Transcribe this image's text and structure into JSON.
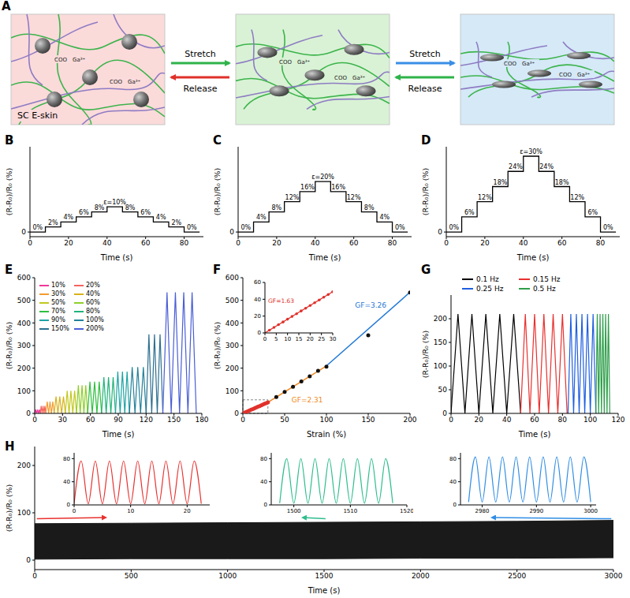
{
  "diagram": {
    "panel": "A",
    "states": [
      {
        "label": "SC E-skin",
        "color": "#fbdada"
      },
      {
        "color": "#d9f2d5"
      },
      {
        "color": "#d5e9f7"
      }
    ],
    "transitions": [
      {
        "forward": "Stretch",
        "back": "Release",
        "forward_color": "#2fb34a",
        "back_color": "#e0302a"
      },
      {
        "forward": "Stretch",
        "back": "Release",
        "forward_color": "#3a8ee6",
        "back_color": "#2fb34a"
      }
    ],
    "ion": "Ga³⁺",
    "ligand": "COO"
  },
  "chart_data": [
    {
      "panel": "B",
      "type": "line",
      "line_style": "step",
      "x_label": "Time (s)",
      "y_label": "(R-R₀)/R₀ (%)",
      "xlim": [
        0,
        90
      ],
      "xticks": [
        0,
        20,
        40,
        60,
        80
      ],
      "ylim": [
        -3,
        55
      ],
      "yticks": [
        0
      ],
      "series": [
        {
          "color": "#000000",
          "x": [
            0,
            8,
            16,
            24,
            32,
            40,
            48,
            56,
            64,
            72,
            80,
            88
          ],
          "values": [
            0,
            3.3,
            6.5,
            9.8,
            13,
            16.3,
            13,
            9.8,
            6.5,
            3.3,
            0,
            0
          ],
          "step_labels": [
            "0%",
            "2%",
            "4%",
            "6%",
            "8%",
            "ε=10%",
            "8%",
            "6%",
            "4%",
            "2%",
            "0%",
            null
          ]
        }
      ]
    },
    {
      "panel": "C",
      "type": "line",
      "line_style": "step",
      "x_label": "Time (s)",
      "y_label": "(R-R₀)/R₀ (%)",
      "xlim": [
        0,
        90
      ],
      "xticks": [
        0,
        20,
        40,
        60,
        80
      ],
      "ylim": [
        -3,
        55
      ],
      "yticks": [
        0
      ],
      "series": [
        {
          "color": "#000000",
          "x": [
            0,
            8,
            16,
            24,
            32,
            40,
            48,
            56,
            64,
            72,
            80,
            88
          ],
          "values": [
            0,
            6.5,
            13,
            19.6,
            26.1,
            32.6,
            26.1,
            19.6,
            13,
            6.5,
            0,
            0
          ],
          "step_labels": [
            "0%",
            "4%",
            "8%",
            "12%",
            "16%",
            "ε=20%",
            "16%",
            "12%",
            "8%",
            "4%",
            "0%",
            null
          ]
        }
      ]
    },
    {
      "panel": "D",
      "type": "line",
      "line_style": "step",
      "x_label": "Time (s)",
      "y_label": "(R-R₀)/R₀ (%)",
      "xlim": [
        0,
        90
      ],
      "xticks": [
        0,
        20,
        40,
        60,
        80
      ],
      "ylim": [
        -3,
        55
      ],
      "yticks": [
        0
      ],
      "series": [
        {
          "color": "#000000",
          "x": [
            0,
            8,
            16,
            24,
            32,
            40,
            48,
            56,
            64,
            72,
            80,
            88
          ],
          "values": [
            0,
            9.8,
            19.6,
            29.3,
            39.1,
            48.9,
            39.1,
            29.3,
            19.6,
            9.8,
            0,
            0
          ],
          "step_labels": [
            "0%",
            "6%",
            "12%",
            "18%",
            "24%",
            "ε=30%",
            "24%",
            "18%",
            "12%",
            "6%",
            "0%",
            null
          ]
        }
      ]
    },
    {
      "panel": "E",
      "type": "line",
      "x_label": "Time (s)",
      "y_label": "(R-R₀)/R₀ (%)",
      "xlim": [
        0,
        180
      ],
      "xticks": [
        0,
        30,
        60,
        90,
        120,
        150,
        180
      ],
      "ylim": [
        0,
        600
      ],
      "yticks": [
        0,
        100,
        200,
        300,
        400,
        500,
        600
      ],
      "legend": "top-left",
      "series": [
        {
          "name": "10%",
          "color": "#f0379b",
          "x": [
            0,
            1,
            2,
            3,
            4,
            5,
            6
          ],
          "values": [
            0,
            17,
            0,
            17,
            0,
            17,
            0
          ]
        },
        {
          "name": "20%",
          "color": "#f4645e",
          "x": [
            6,
            7,
            8,
            9,
            10,
            11,
            12
          ],
          "values": [
            0,
            33,
            0,
            33,
            0,
            33,
            0
          ]
        },
        {
          "name": "30%",
          "color": "#f39c2f",
          "x": [
            12,
            13.5,
            15,
            16.5,
            18,
            19.5,
            21
          ],
          "values": [
            0,
            52,
            0,
            52,
            0,
            52,
            0
          ]
        },
        {
          "name": "40%",
          "color": "#d9b21c",
          "x": [
            21,
            23,
            25,
            27,
            29,
            31,
            33
          ],
          "values": [
            0,
            75,
            0,
            75,
            0,
            75,
            0
          ]
        },
        {
          "name": "50%",
          "color": "#c2c81f",
          "x": [
            33,
            35,
            37,
            39,
            41,
            43,
            45
          ],
          "values": [
            0,
            100,
            0,
            100,
            0,
            100,
            0
          ]
        },
        {
          "name": "60%",
          "color": "#8fcf2a",
          "x": [
            45,
            47,
            49,
            51,
            53,
            55,
            57
          ],
          "values": [
            0,
            125,
            0,
            125,
            0,
            125,
            0
          ]
        },
        {
          "name": "70%",
          "color": "#2fbf3f",
          "x": [
            57,
            59.5,
            62,
            64.5,
            67,
            69.5,
            72
          ],
          "values": [
            0,
            140,
            0,
            140,
            0,
            140,
            0
          ]
        },
        {
          "name": "80%",
          "color": "#22b37a",
          "x": [
            72,
            74.5,
            77,
            79.5,
            82,
            84.5,
            87
          ],
          "values": [
            0,
            160,
            0,
            160,
            0,
            160,
            0
          ]
        },
        {
          "name": "90%",
          "color": "#1ea3a3",
          "x": [
            87,
            89.5,
            92,
            94.5,
            97,
            99.5,
            102
          ],
          "values": [
            0,
            185,
            0,
            185,
            0,
            185,
            0
          ]
        },
        {
          "name": "100%",
          "color": "#23809a",
          "x": [
            102,
            105,
            108,
            111,
            114,
            117,
            120
          ],
          "values": [
            0,
            205,
            0,
            205,
            0,
            205,
            0
          ]
        },
        {
          "name": "150%",
          "color": "#2c6f8f",
          "x": [
            120,
            123,
            126,
            129,
            132,
            135,
            138
          ],
          "values": [
            0,
            350,
            0,
            350,
            0,
            350,
            0
          ]
        },
        {
          "name": "200%",
          "color": "#4a5fd6",
          "x": [
            138,
            142.5,
            147,
            151.5,
            156,
            160.5,
            165,
            169.5,
            174
          ],
          "values": [
            0,
            535,
            0,
            535,
            0,
            535,
            0,
            535,
            0
          ]
        }
      ]
    },
    {
      "panel": "F",
      "type": "scatter",
      "x_label": "Strain (%)",
      "y_label": "(R-R₀)/R₀ (%)",
      "xlim": [
        0,
        200
      ],
      "xticks": [
        0,
        50,
        100,
        150,
        200
      ],
      "ylim": [
        0,
        600
      ],
      "yticks": [
        0,
        100,
        200,
        300,
        400,
        500,
        600
      ],
      "inset": {
        "xlim": [
          0,
          30
        ],
        "xticks": [
          0,
          5,
          10,
          15,
          20,
          25,
          30
        ],
        "ylim": [
          0,
          60
        ],
        "yticks": [
          0,
          20,
          40,
          60
        ]
      },
      "series": [
        {
          "type": "line",
          "color": "#e0312b",
          "x": [
            0,
            30
          ],
          "values": [
            0,
            48.9
          ],
          "label": "GF=1.63"
        },
        {
          "type": "line",
          "color": "#f08a24",
          "x": [
            30,
            100
          ],
          "values": [
            48.9,
            210
          ],
          "label": "GF=2.31"
        },
        {
          "type": "line",
          "color": "#1f77d4",
          "x": [
            100,
            200
          ],
          "values": [
            210,
            536
          ],
          "label": "GF=3.26"
        },
        {
          "type": "scatter",
          "marker": "circle",
          "color": "#e0312b",
          "x": [
            2,
            4,
            6,
            8,
            10,
            12,
            14,
            16,
            18,
            20,
            22,
            24,
            26,
            28,
            30
          ],
          "values": [
            3.3,
            6.5,
            9.8,
            13,
            16.3,
            19.6,
            22.8,
            26.1,
            29.3,
            32.6,
            35.9,
            39.1,
            42.4,
            45.6,
            48.9
          ]
        },
        {
          "type": "scatter",
          "marker": "circle",
          "color": "#111111",
          "x": [
            40,
            50,
            60,
            70,
            80,
            90,
            100,
            150,
            200
          ],
          "values": [
            72,
            95,
            118,
            141,
            164,
            188,
            207,
            345,
            535
          ]
        }
      ]
    },
    {
      "panel": "G",
      "type": "line",
      "x_label": "Time (s)",
      "y_label": "(R-R₀)/R₀ (%)",
      "xlim": [
        0,
        120
      ],
      "xticks": [
        0,
        20,
        40,
        60,
        80,
        100,
        120
      ],
      "ylim": [
        0,
        250
      ],
      "yticks": [
        0,
        50,
        100,
        150,
        200
      ],
      "legend": "top",
      "series": [
        {
          "name": "0.1 Hz",
          "color": "#000000",
          "x": [
            0,
            5,
            10,
            15,
            20,
            25,
            30,
            35,
            40,
            45,
            50
          ],
          "values": [
            0,
            210,
            0,
            210,
            0,
            210,
            0,
            210,
            0,
            210,
            0
          ]
        },
        {
          "name": "0.15 Hz",
          "color": "#e8312f",
          "x": [
            50,
            53.33,
            56.67,
            60,
            63.33,
            66.67,
            70,
            73.33,
            76.67,
            80,
            83.33
          ],
          "values": [
            0,
            210,
            0,
            210,
            0,
            210,
            0,
            210,
            0,
            210,
            0
          ]
        },
        {
          "name": "0.25 Hz",
          "color": "#1f5fe0",
          "x": [
            84,
            86,
            88,
            90,
            92,
            94,
            96,
            98,
            100,
            102,
            104
          ],
          "values": [
            0,
            210,
            0,
            210,
            0,
            210,
            0,
            210,
            0,
            210,
            0
          ]
        },
        {
          "name": "0.5 Hz",
          "color": "#2e9e4a",
          "x": [
            104,
            105,
            106,
            107,
            108,
            109,
            110,
            111,
            112,
            113,
            114
          ],
          "values": [
            0,
            210,
            0,
            210,
            0,
            210,
            0,
            210,
            0,
            210,
            0
          ]
        }
      ]
    },
    {
      "panel": "H",
      "type": "area",
      "x_label": "Time (s)",
      "y_label": "(R-R₀)/R₀ (%)",
      "xlim": [
        0,
        3000
      ],
      "xticks": [
        0,
        500,
        1000,
        1500,
        2000,
        2500,
        3000
      ],
      "ylim": [
        -20,
        240
      ],
      "yticks": [
        0,
        100,
        200
      ],
      "series": [
        {
          "color": "#1a1a1a",
          "x": [
            0,
            500,
            1000,
            1500,
            2000,
            2500,
            3000
          ],
          "lower": [
            2,
            3,
            3,
            3,
            4,
            4,
            5
          ],
          "upper": [
            77,
            78,
            79,
            80,
            81,
            82,
            84
          ]
        }
      ],
      "insets": [
        {
          "color": "#e8312f",
          "xlim": [
            0,
            24
          ],
          "xticks": [
            0,
            10,
            20
          ],
          "ylim": [
            0,
            90
          ],
          "yticks": [
            0,
            40,
            80
          ],
          "x": [
            0,
            1.25,
            2.5,
            3.75,
            5,
            6.25,
            7.5,
            8.75,
            10,
            11.25,
            12.5,
            13.75,
            15,
            16.25,
            17.5,
            18.75,
            20,
            21.25,
            22.5
          ],
          "values": [
            2,
            76,
            2,
            76,
            2,
            76,
            2,
            76,
            2,
            76,
            2,
            76,
            2,
            76,
            2,
            76,
            2,
            76,
            2
          ]
        },
        {
          "color": "#2ebd8e",
          "xlim": [
            1496,
            1520
          ],
          "xticks": [
            1500,
            1510,
            1520
          ],
          "ylim": [
            0,
            90
          ],
          "yticks": [
            0,
            40,
            80
          ],
          "x": [
            1497.5,
            1498.75,
            1500,
            1501.25,
            1502.5,
            1503.75,
            1505,
            1506.25,
            1507.5,
            1508.75,
            1510,
            1511.25,
            1512.5,
            1513.75,
            1515,
            1516.25,
            1517.5
          ],
          "values": [
            3,
            80,
            3,
            80,
            3,
            80,
            3,
            80,
            3,
            80,
            3,
            80,
            3,
            80,
            3,
            80,
            3
          ]
        },
        {
          "color": "#2f8de4",
          "xlim": [
            2976,
            3001
          ],
          "xticks": [
            2980,
            2990,
            3000
          ],
          "ylim": [
            0,
            90
          ],
          "yticks": [
            0,
            40,
            80
          ],
          "x": [
            2977.5,
            2978.75,
            2980,
            2981.25,
            2982.5,
            2983.75,
            2985,
            2986.25,
            2987.5,
            2988.75,
            2990,
            2991.25,
            2992.5,
            2993.75,
            2995,
            2996.25,
            2997.5,
            2998.75,
            3000
          ],
          "values": [
            5,
            83,
            5,
            83,
            5,
            83,
            5,
            83,
            5,
            83,
            5,
            83,
            5,
            83,
            5,
            83,
            5,
            83,
            5
          ]
        }
      ]
    }
  ]
}
